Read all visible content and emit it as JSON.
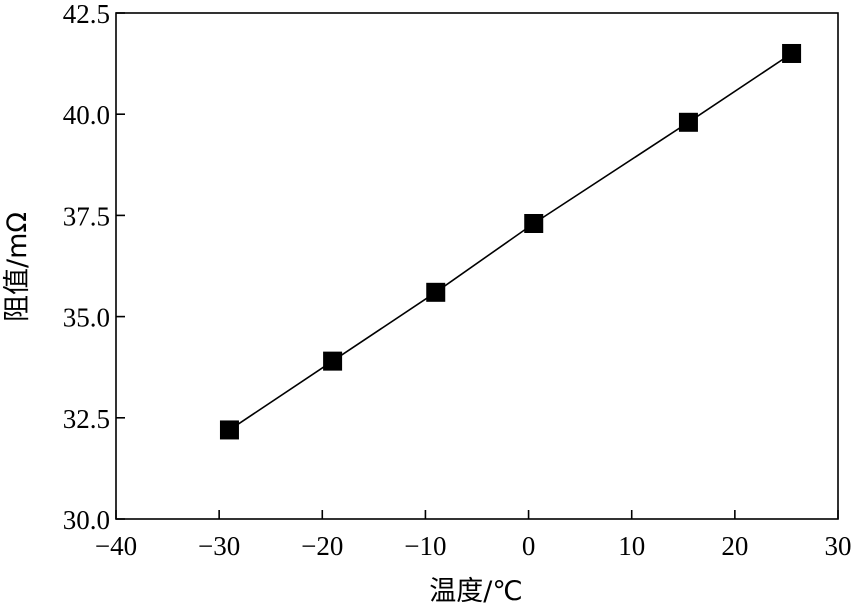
{
  "chart_data": {
    "type": "line",
    "xlabel": "温度/℃",
    "ylabel": "阻值/mΩ",
    "xlim": [
      -40,
      30
    ],
    "ylim": [
      30.0,
      42.5
    ],
    "x_ticks": [
      "−40",
      "−30",
      "−20",
      "−10",
      "0",
      "10",
      "20",
      "30"
    ],
    "y_ticks": [
      "30.0",
      "32.5",
      "35.0",
      "37.5",
      "40.0",
      "42.5"
    ],
    "grid": false,
    "legend": "none",
    "marker": "square",
    "color": "#000000",
    "series": [
      {
        "x": [
          -29,
          -19,
          -9,
          0.5,
          15.5,
          25.5
        ],
        "y": [
          32.2,
          33.9,
          35.6,
          37.3,
          39.8,
          41.5
        ]
      }
    ]
  }
}
